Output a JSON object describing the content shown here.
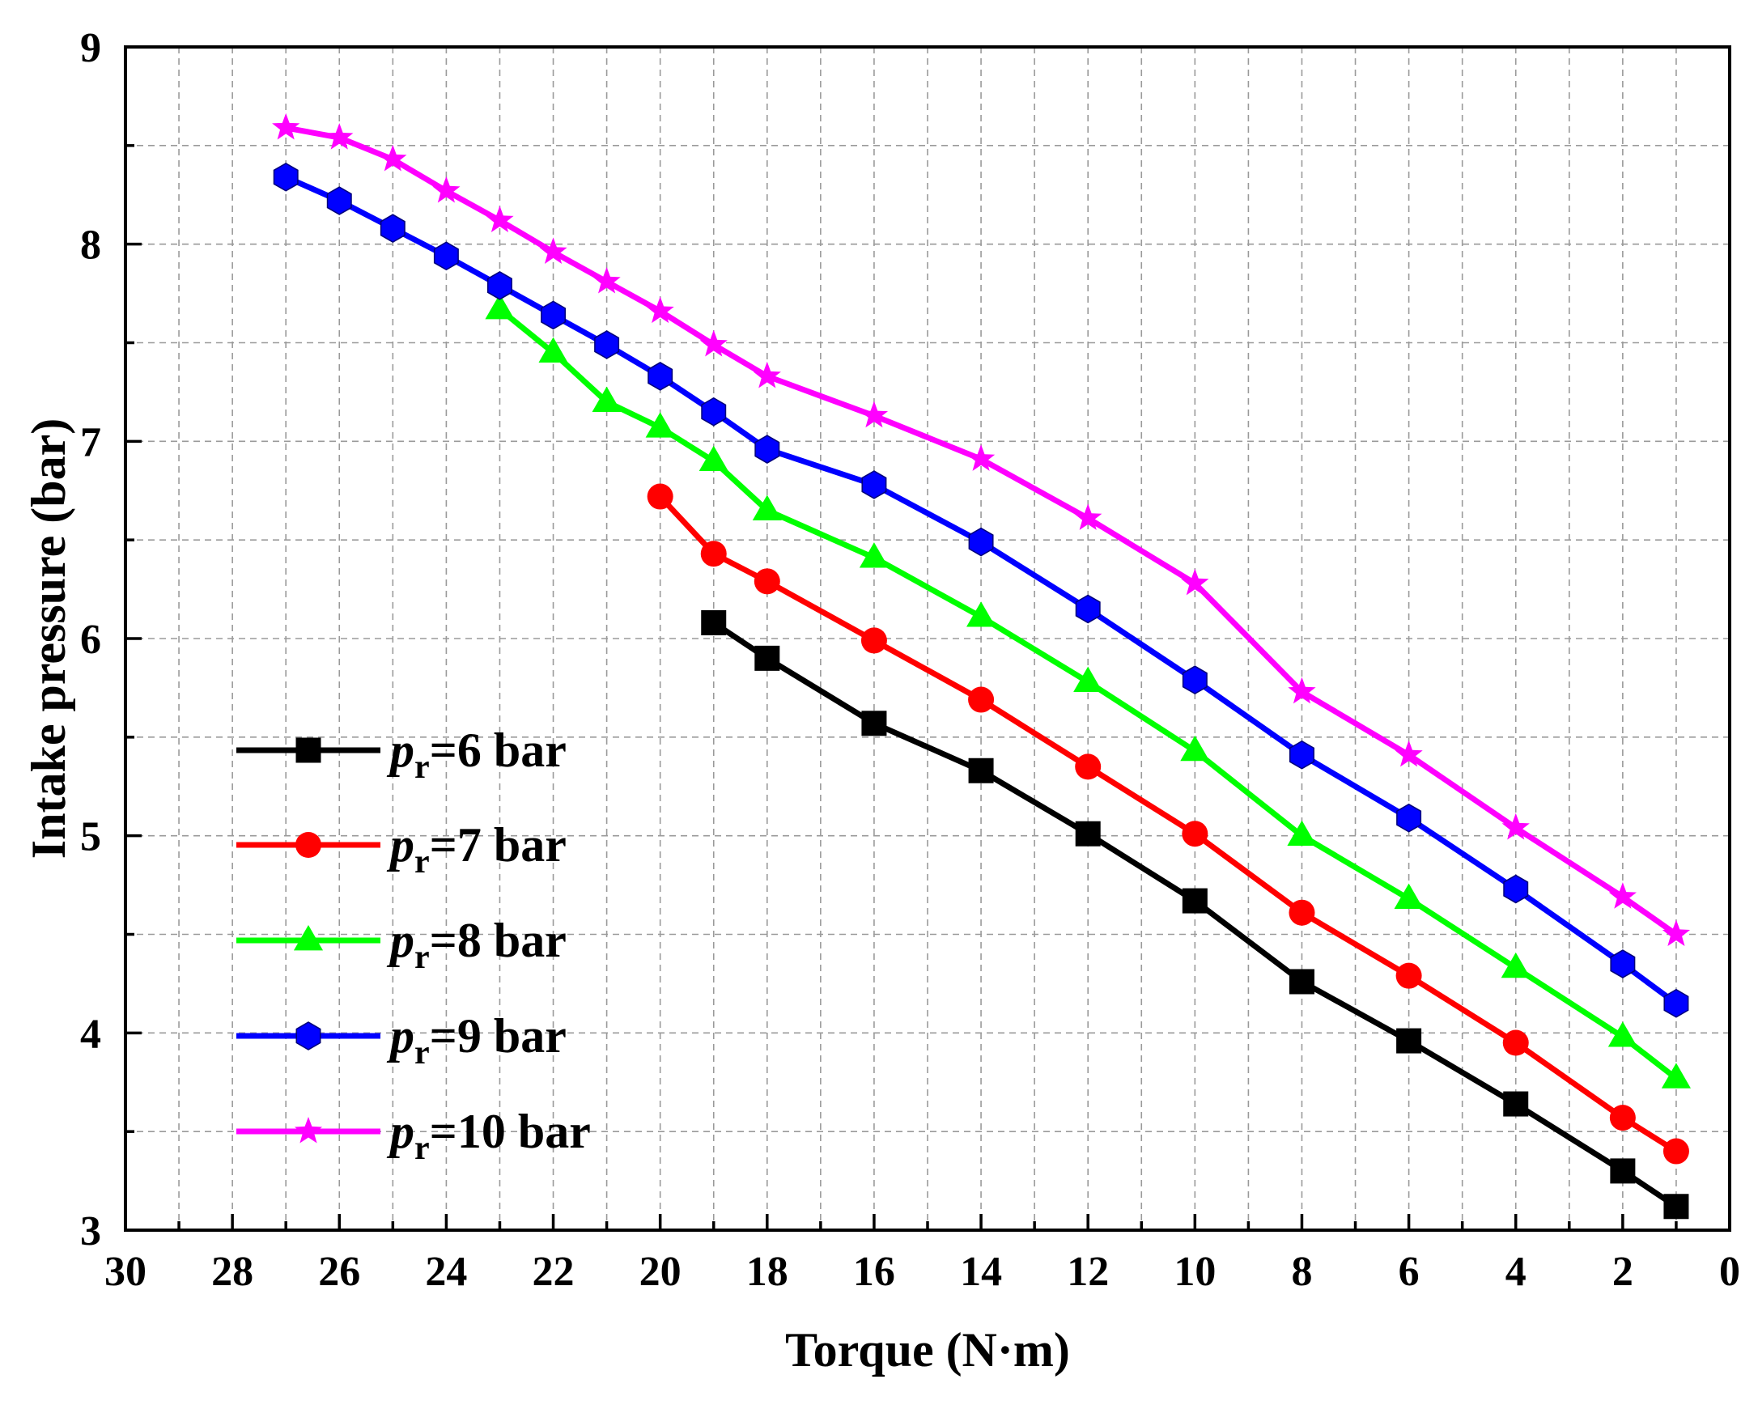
{
  "chart_data": {
    "type": "line",
    "title": "",
    "xlabel": "Torque (N·m)",
    "ylabel": "Intake pressure (bar)",
    "xlim": [
      30,
      0
    ],
    "ylim": [
      3,
      9
    ],
    "x_reversed": true,
    "grid": true,
    "x_ticks": [
      30,
      28,
      26,
      24,
      22,
      20,
      18,
      16,
      14,
      12,
      10,
      8,
      6,
      4,
      2,
      0
    ],
    "y_ticks": [
      3,
      4,
      5,
      6,
      7,
      8,
      9
    ],
    "legend_position": "left",
    "series": [
      {
        "name": "pr=6 bar",
        "legend_prefix": "p",
        "legend_sub": "r",
        "legend_suffix": "=6 bar",
        "color": "#000000",
        "marker": "square",
        "x": [
          19,
          18,
          16,
          14,
          12,
          10,
          8,
          6,
          4,
          2,
          1
        ],
        "y": [
          6.08,
          5.9,
          5.57,
          5.33,
          5.01,
          4.67,
          4.26,
          3.96,
          3.64,
          3.3,
          3.12
        ]
      },
      {
        "name": "pr=7 bar",
        "legend_prefix": "p",
        "legend_sub": "r",
        "legend_suffix": "=7 bar",
        "color": "#ff0000",
        "marker": "circle",
        "x": [
          20,
          19,
          18,
          16,
          14,
          12,
          10,
          8,
          6,
          4,
          2,
          1
        ],
        "y": [
          6.72,
          6.43,
          6.29,
          5.99,
          5.69,
          5.35,
          5.01,
          4.61,
          4.29,
          3.95,
          3.57,
          3.4
        ]
      },
      {
        "name": "pr=8 bar",
        "legend_prefix": "p",
        "legend_sub": "r",
        "legend_suffix": "=8 bar",
        "color": "#00ff00",
        "marker": "triangle",
        "x": [
          23,
          22,
          21,
          20,
          19,
          18,
          16,
          14,
          12,
          10,
          8,
          6,
          4,
          2,
          1
        ],
        "y": [
          7.67,
          7.45,
          7.2,
          7.07,
          6.9,
          6.65,
          6.41,
          6.11,
          5.78,
          5.43,
          5.0,
          4.68,
          4.33,
          3.98,
          3.77
        ]
      },
      {
        "name": "pr=9 bar",
        "legend_prefix": "p",
        "legend_sub": "r",
        "legend_suffix": "=9 bar",
        "color": "#0000ff",
        "marker": "hexagon",
        "x": [
          27,
          26,
          25,
          24,
          23,
          22,
          21,
          20,
          19,
          18,
          16,
          14,
          12,
          10,
          8,
          6,
          4,
          2,
          1
        ],
        "y": [
          8.34,
          8.22,
          8.08,
          7.94,
          7.79,
          7.64,
          7.49,
          7.33,
          7.15,
          6.96,
          6.78,
          6.49,
          6.15,
          5.79,
          5.41,
          5.09,
          4.73,
          4.35,
          4.15
        ]
      },
      {
        "name": "pr=10 bar",
        "legend_prefix": "p",
        "legend_sub": "r",
        "legend_suffix": "=10 bar",
        "color": "#ff00ff",
        "marker": "star",
        "x": [
          27,
          26,
          25,
          24,
          23,
          22,
          21,
          20,
          19,
          18,
          16,
          14,
          12,
          10,
          8,
          6,
          4,
          2,
          1
        ],
        "y": [
          8.59,
          8.54,
          8.43,
          8.27,
          8.12,
          7.96,
          7.81,
          7.66,
          7.49,
          7.33,
          7.13,
          6.91,
          6.61,
          6.28,
          5.73,
          5.41,
          5.04,
          4.69,
          4.5
        ]
      }
    ]
  }
}
